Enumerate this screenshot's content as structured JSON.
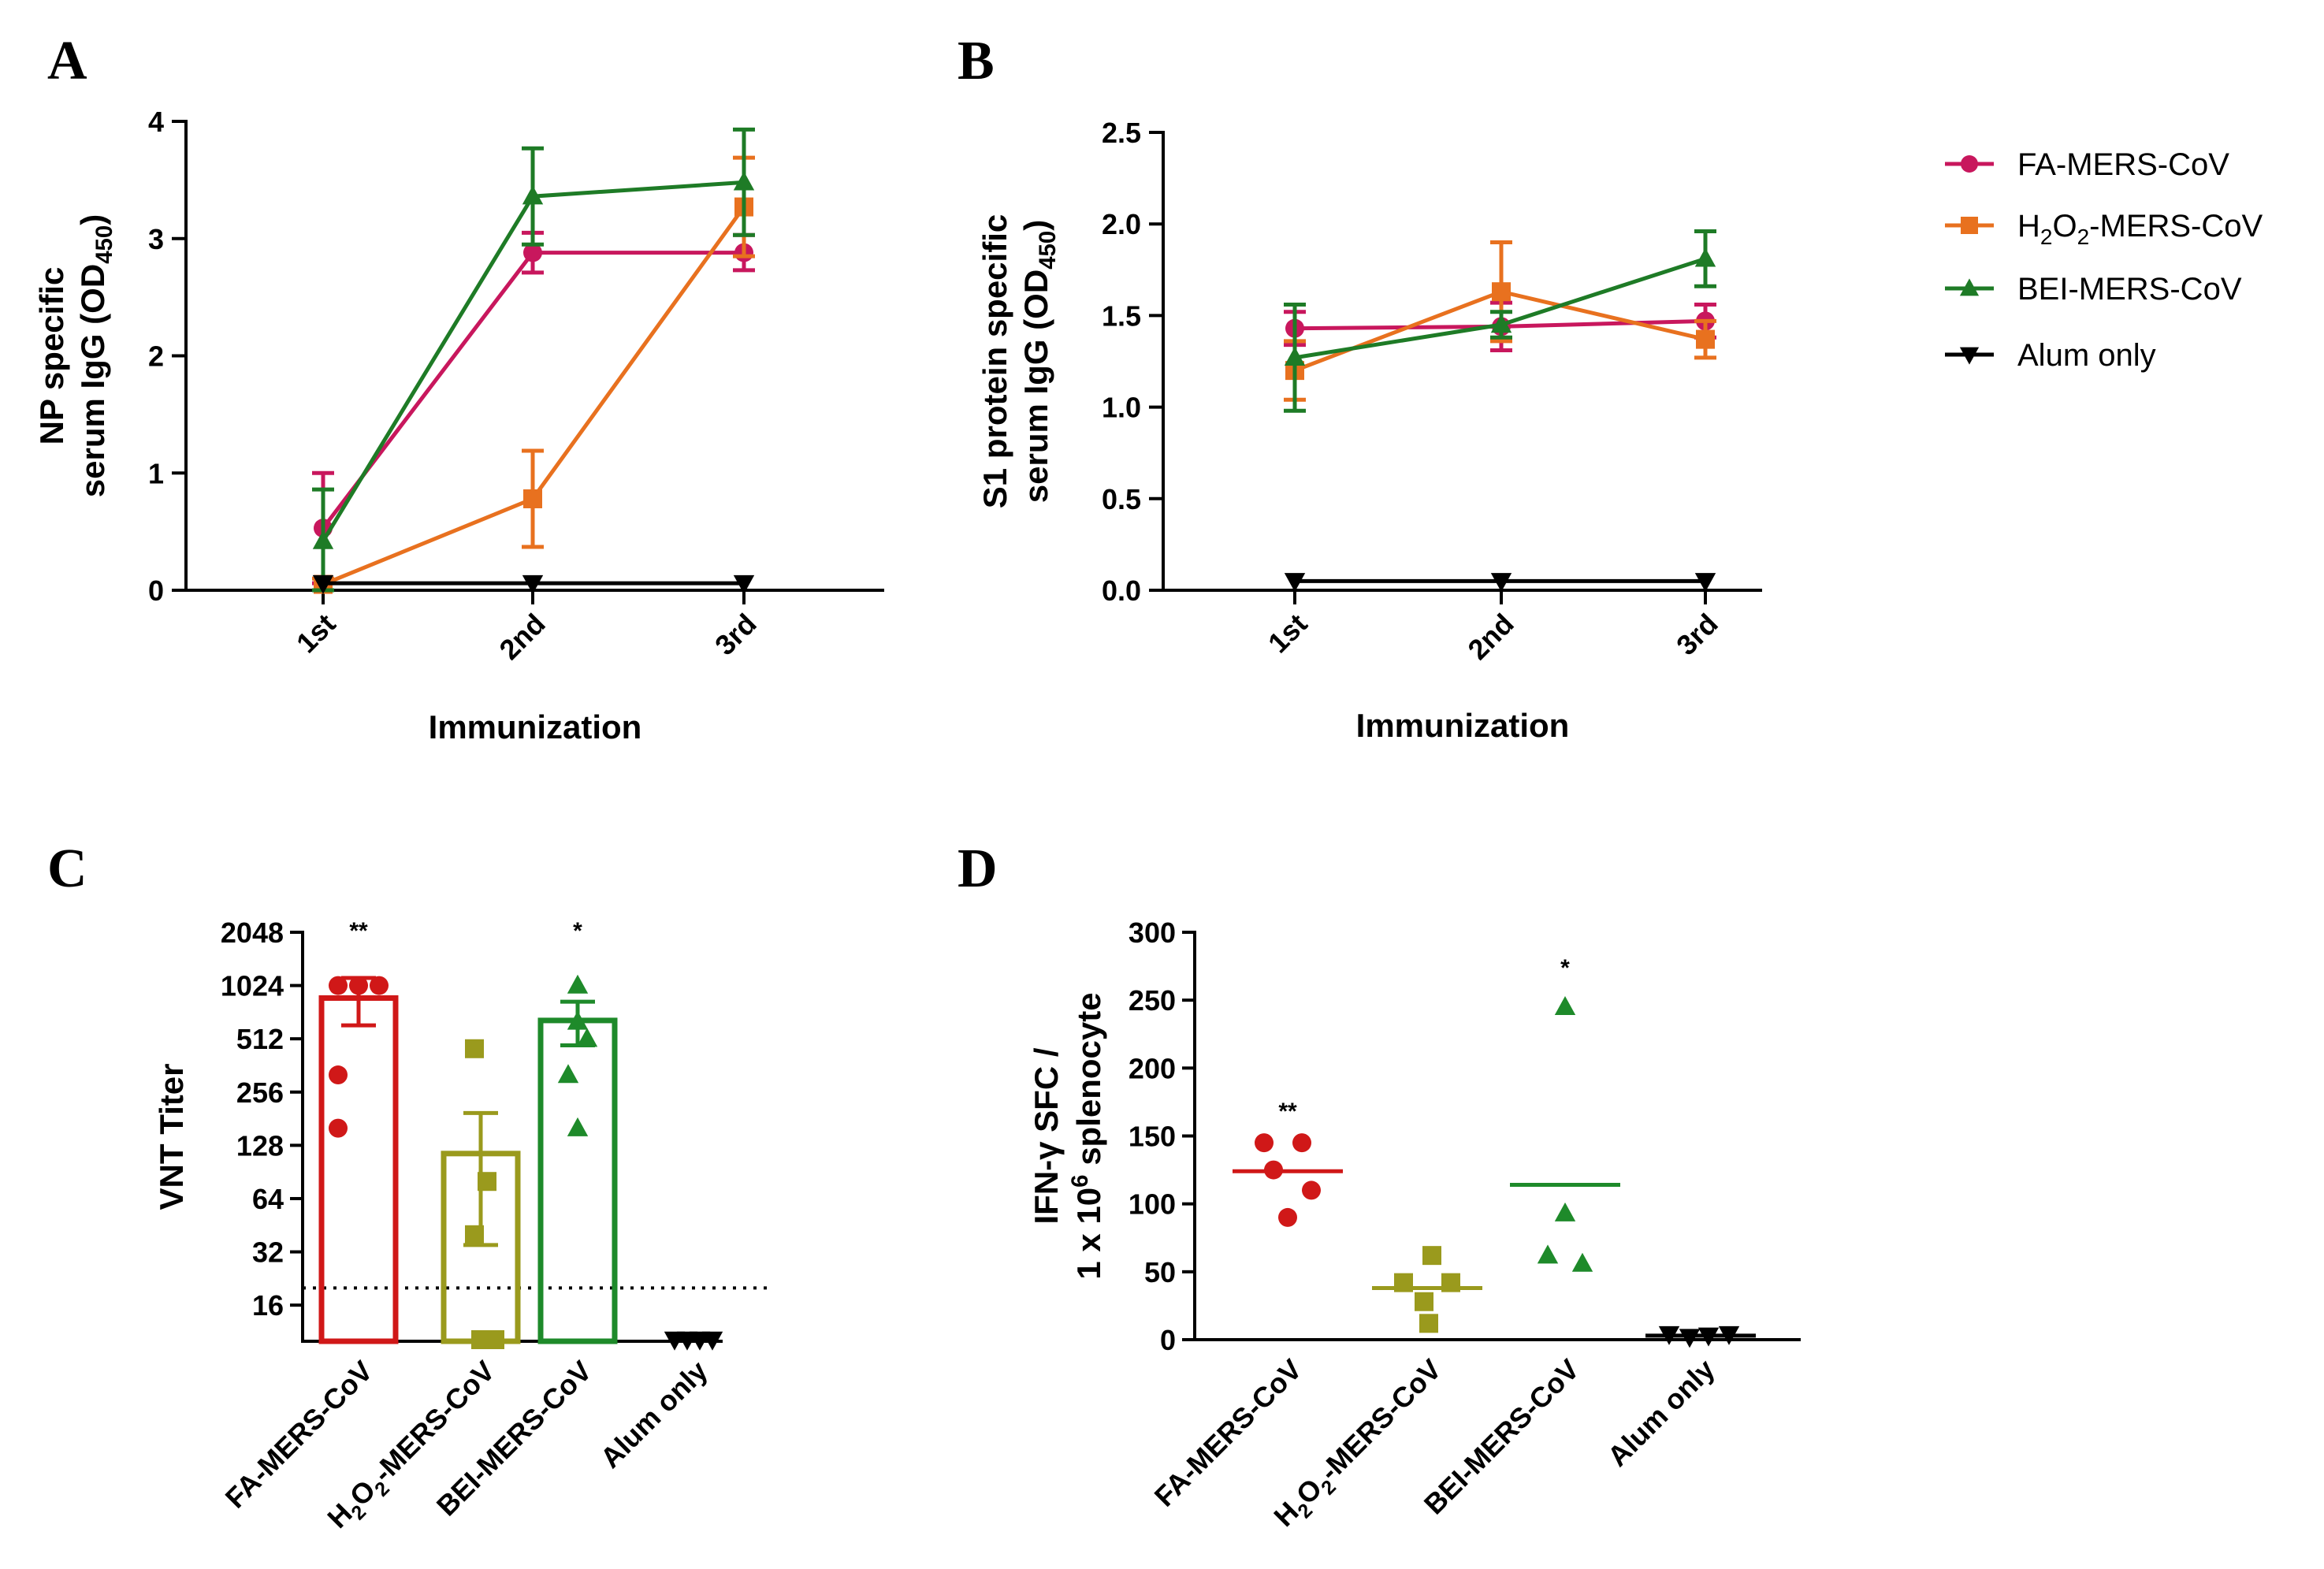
{
  "colors": {
    "fa": "#c8175d",
    "h2o2": "#e8711f",
    "bei": "#1e7b26",
    "alum": "#000000",
    "fa_c": "#d01818",
    "h2o2_c": "#9a9a1d",
    "bei_c": "#1e8a2a"
  },
  "legend": {
    "items": [
      {
        "key": "fa",
        "label": "FA-MERS-CoV",
        "marker": "circle",
        "color": "#c8175d"
      },
      {
        "key": "h2o2",
        "label_parts": [
          "H",
          "2",
          "O",
          "2",
          "-MERS-CoV"
        ],
        "label": "H2O2-MERS-CoV",
        "marker": "square",
        "color": "#e8711f"
      },
      {
        "key": "bei",
        "label": "BEI-MERS-CoV",
        "marker": "triangle-up",
        "color": "#1e7b26"
      },
      {
        "key": "alum",
        "label": "Alum only",
        "marker": "triangle-down",
        "color": "#000000"
      }
    ]
  },
  "chart_data": [
    {
      "id": "A",
      "letter": "A",
      "type": "line",
      "categories": [
        "1st",
        "2nd",
        "3rd"
      ],
      "xlabel": "Immunization",
      "ylabel_lines": [
        "NP specific",
        "serum IgG (OD",
        "450",
        ")"
      ],
      "ylim": [
        0,
        4
      ],
      "yticks": [
        0,
        1,
        2,
        3,
        4
      ],
      "ytick_labels": [
        "0",
        "1",
        "2",
        "3",
        "4"
      ],
      "series": [
        {
          "name": "FA-MERS-CoV",
          "color": "#c8175d",
          "marker": "circle",
          "values": [
            0.53,
            2.88,
            2.88
          ],
          "errors": [
            0.47,
            0.17,
            0.15
          ]
        },
        {
          "name": "H2O2-MERS-CoV",
          "color": "#e8711f",
          "marker": "square",
          "values": [
            0.05,
            0.78,
            3.27
          ],
          "errors": [
            0.05,
            0.41,
            0.42
          ]
        },
        {
          "name": "BEI-MERS-CoV",
          "color": "#1e7b26",
          "marker": "triangle-up",
          "values": [
            0.42,
            3.36,
            3.48
          ],
          "errors": [
            0.44,
            0.41,
            0.45
          ]
        },
        {
          "name": "Alum only",
          "color": "#000000",
          "marker": "triangle-down",
          "values": [
            0.06,
            0.06,
            0.06
          ],
          "errors": [
            0,
            0,
            0
          ]
        }
      ]
    },
    {
      "id": "B",
      "letter": "B",
      "type": "line",
      "categories": [
        "1st",
        "2nd",
        "3rd"
      ],
      "xlabel": "Immunization",
      "ylabel_lines": [
        "S1 protein specific",
        "serum IgG (OD",
        "450",
        ")"
      ],
      "ylim": [
        0,
        2.5
      ],
      "yticks": [
        0,
        0.5,
        1.0,
        1.5,
        2.0,
        2.5
      ],
      "ytick_labels": [
        "0.0",
        "0.5",
        "1.0",
        "1.5",
        "2.0",
        "2.5"
      ],
      "series": [
        {
          "name": "FA-MERS-CoV",
          "color": "#c8175d",
          "marker": "circle",
          "values": [
            1.43,
            1.44,
            1.47
          ],
          "errors": [
            0.09,
            0.13,
            0.09
          ]
        },
        {
          "name": "H2O2-MERS-CoV",
          "color": "#e8711f",
          "marker": "square",
          "values": [
            1.2,
            1.63,
            1.37
          ],
          "errors": [
            0.16,
            0.27,
            0.1
          ]
        },
        {
          "name": "BEI-MERS-CoV",
          "color": "#1e7b26",
          "marker": "triangle-up",
          "values": [
            1.27,
            1.45,
            1.81
          ],
          "errors": [
            0.29,
            0.07,
            0.15
          ]
        },
        {
          "name": "Alum only",
          "color": "#000000",
          "marker": "triangle-down",
          "values": [
            0.05,
            0.05,
            0.05
          ],
          "errors": [
            0,
            0,
            0
          ]
        }
      ]
    },
    {
      "id": "C",
      "letter": "C",
      "type": "bar",
      "scale": "log2",
      "categories": [
        "FA-MERS-CoV",
        "H2O2-MERS-CoV",
        "BEI-MERS-CoV",
        "Alum only"
      ],
      "category_parts": [
        [
          "FA-MERS-CoV"
        ],
        [
          "H",
          "2",
          "O",
          "2",
          "-MERS-CoV"
        ],
        [
          "BEI-MERS-CoV"
        ],
        [
          "Alum only"
        ]
      ],
      "ylabel": "VNT Titer",
      "ylim": [
        10,
        2048
      ],
      "yticks": [
        16,
        32,
        64,
        128,
        256,
        512,
        1024,
        2048
      ],
      "ytick_labels": [
        "16",
        "32",
        "64",
        "128",
        "256",
        "512",
        "1024",
        "2048"
      ],
      "detection_limit": 20,
      "bars": [
        {
          "name": "FA-MERS-CoV",
          "color": "#d01818",
          "marker": "circle",
          "value": 870,
          "sem": 260,
          "points": [
            1024,
            1024,
            1024,
            320,
            160
          ],
          "sig": "**"
        },
        {
          "name": "H2O2-MERS-CoV",
          "color": "#9a9a1d",
          "marker": "square",
          "value": 115,
          "sem": 80,
          "points": [
            450,
            80,
            40,
            10,
            10
          ],
          "sig": ""
        },
        {
          "name": "BEI-MERS-CoV",
          "color": "#1e8a2a",
          "marker": "triangle-up",
          "value": 650,
          "sem": 180,
          "points": [
            1024,
            640,
            512,
            320,
            160
          ],
          "sig": "*"
        },
        {
          "name": "Alum only",
          "color": "#000000",
          "marker": "triangle-down",
          "value": 10,
          "sem": 0,
          "points": [
            10,
            10,
            10,
            10
          ],
          "sig": ""
        }
      ]
    },
    {
      "id": "D",
      "letter": "D",
      "type": "scatter",
      "categories": [
        "FA-MERS-CoV",
        "H2O2-MERS-CoV",
        "BEI-MERS-CoV",
        "Alum only"
      ],
      "category_parts": [
        [
          "FA-MERS-CoV"
        ],
        [
          "H",
          "2",
          "O",
          "2",
          "-MERS-CoV"
        ],
        [
          "BEI-MERS-CoV"
        ],
        [
          "Alum only"
        ]
      ],
      "ylabel_lines": [
        "IFN-γ SFC /",
        "1 x 10",
        "6",
        " splenocyte"
      ],
      "ylim": [
        0,
        300
      ],
      "yticks": [
        0,
        50,
        100,
        150,
        200,
        250,
        300
      ],
      "ytick_labels": [
        "0",
        "50",
        "100",
        "150",
        "200",
        "250",
        "300"
      ],
      "groups": [
        {
          "name": "FA-MERS-CoV",
          "color": "#d01818",
          "marker": "circle",
          "mean": 124,
          "points": [
            145,
            145,
            125,
            110,
            90
          ],
          "sig": "**"
        },
        {
          "name": "H2O2-MERS-CoV",
          "color": "#9a9a1d",
          "marker": "square",
          "mean": 38,
          "points": [
            62,
            42,
            42,
            28,
            12
          ],
          "sig": ""
        },
        {
          "name": "BEI-MERS-CoV",
          "color": "#1e8a2a",
          "marker": "triangle-up",
          "mean": 114,
          "points": [
            245,
            93,
            62,
            56
          ],
          "sig": "*"
        },
        {
          "name": "Alum only",
          "color": "#000000",
          "marker": "triangle-down",
          "mean": 3,
          "points": [
            4,
            2,
            3,
            4
          ],
          "sig": ""
        }
      ]
    }
  ]
}
